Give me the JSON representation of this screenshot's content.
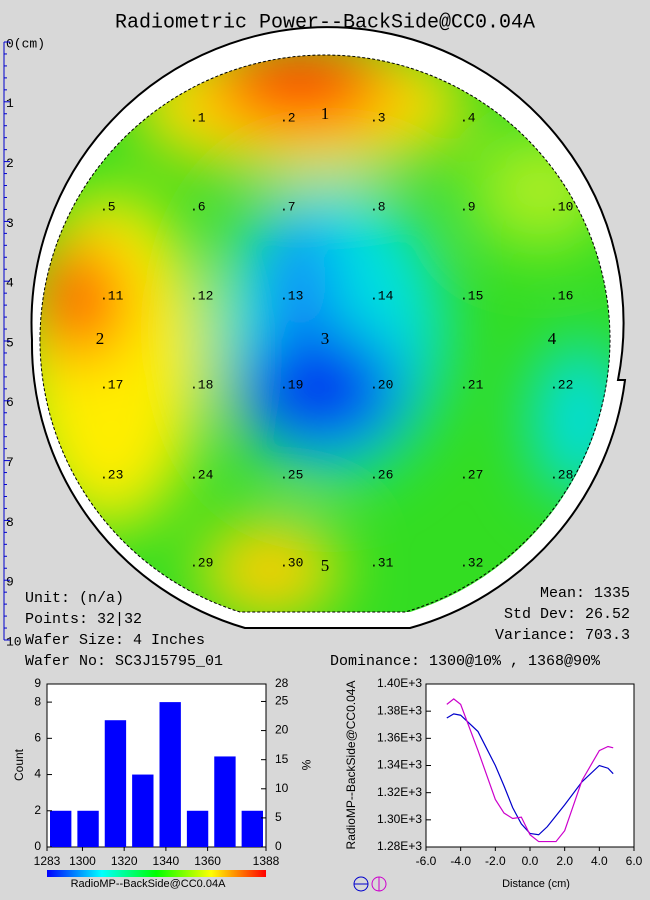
{
  "title": "Radiometric Power--BackSide@CC0.04A",
  "ruler": {
    "labels": [
      "0(cm)",
      "1",
      "2",
      "3",
      "4",
      "5",
      "6",
      "7",
      "8",
      "9",
      "10"
    ]
  },
  "wafer_map": {
    "points": [
      ".1",
      ".2",
      ".3",
      ".4",
      ".5",
      ".6",
      ".7",
      ".8",
      ".9",
      ".10",
      ".11",
      ".12",
      ".13",
      ".14",
      ".15",
      ".16",
      ".17",
      ".18",
      ".19",
      ".20",
      ".21",
      ".22",
      ".23",
      ".24",
      ".25",
      ".26",
      ".27",
      ".28",
      ".29",
      ".30",
      ".31",
      ".32"
    ],
    "sites": [
      "1",
      "2",
      "3",
      "4",
      "5"
    ]
  },
  "stats": {
    "left": [
      "Unit: (n/a)",
      "Points: 32|32",
      "Wafer Size: 4 Inches",
      "Wafer No: SC3J15795_01"
    ],
    "right": [
      "Mean: 1335",
      "Std Dev: 26.52",
      "Variance: 703.3"
    ],
    "dominance": "Dominance: 1300@10% , 1368@90%"
  },
  "chart_data": [
    {
      "type": "histogram",
      "bins": [
        1283,
        1296.125,
        1309.25,
        1322.375,
        1335.5,
        1348.625,
        1361.75,
        1374.875,
        1388
      ],
      "values": [
        2,
        2,
        7,
        4,
        8,
        2,
        5,
        2
      ],
      "color": "#0000ff",
      "xlim": [
        1283,
        1388
      ],
      "xticks": [
        1283,
        1300,
        1320,
        1340,
        1360,
        1388
      ],
      "ylim": [
        0,
        9
      ],
      "yticks": [
        0,
        2,
        4,
        6,
        8,
        9
      ],
      "y2lim": [
        0,
        28
      ],
      "y2ticks": [
        0,
        5,
        10,
        15,
        20,
        25,
        28
      ],
      "ylabel": "Count",
      "y2label": "%",
      "xlabel": "RadioMP--BackSide@CC0.04A"
    },
    {
      "type": "line",
      "x": [
        -4.8,
        -4.4,
        -4,
        -3,
        -2,
        -1.5,
        -1,
        -0.5,
        0,
        0.5,
        1,
        1.5,
        2,
        3,
        4,
        4.5,
        4.8
      ],
      "series": [
        {
          "color": "#0000cc",
          "values": [
            1375,
            1378,
            1377,
            1365,
            1340,
            1325,
            1309,
            1297,
            1290,
            1289,
            1295,
            1303,
            1311,
            1328,
            1340,
            1338,
            1334
          ]
        },
        {
          "color": "#cc00cc",
          "values": [
            1385,
            1389,
            1385,
            1351,
            1315,
            1305,
            1301,
            1302,
            1289,
            1284,
            1284,
            1284,
            1292,
            1329,
            1351,
            1354,
            1353
          ]
        }
      ],
      "xlim": [
        -6,
        6
      ],
      "xticks": [
        {
          "value": -6,
          "label": "-6.0"
        },
        {
          "value": -4,
          "label": "-4.0"
        },
        {
          "value": -2,
          "label": "-2.0"
        },
        {
          "value": 0,
          "label": "0.0"
        },
        {
          "value": 2,
          "label": "2.0"
        },
        {
          "value": 4,
          "label": "4.0"
        },
        {
          "value": 6,
          "label": "6.0"
        }
      ],
      "ylim": [
        1280,
        1400
      ],
      "yticks": [
        {
          "value": 1280,
          "label": "1.28E+3"
        },
        {
          "value": 1300,
          "label": "1.30E+3"
        },
        {
          "value": 1320,
          "label": "1.32E+3"
        },
        {
          "value": 1340,
          "label": "1.34E+3"
        },
        {
          "value": 1360,
          "label": "1.36E+3"
        },
        {
          "value": 1380,
          "label": "1.38E+3"
        },
        {
          "value": 1400,
          "label": "1.40E+3"
        }
      ],
      "ylabel": "RadioMP--BackSide@CC0.04A",
      "xlabel": "Distance (cm)"
    }
  ]
}
